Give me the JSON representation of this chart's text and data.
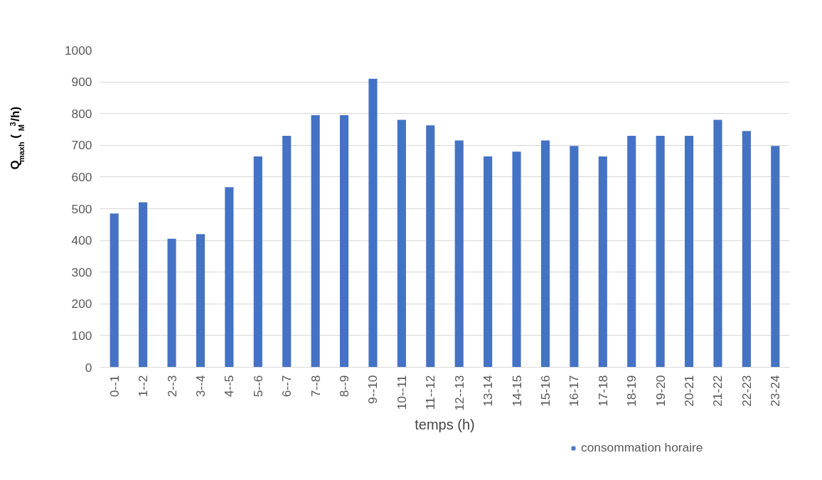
{
  "chart_data": {
    "type": "bar",
    "xlabel": "temps (h)",
    "ylabel": "Q$_{maxh}$ ($_{M}$$^{3}$/h)",
    "categories": [
      "0--1",
      "1--2",
      "2--3",
      "3--4",
      "4--5",
      "5--6",
      "6--7",
      "7--8",
      "8--9",
      "9--10",
      "10--11",
      "11--12",
      "12--13",
      "13-14",
      "14-15",
      "15-16",
      "16-17",
      "17-18",
      "18-19",
      "19-20",
      "20-21",
      "21-22",
      "22-23",
      "23-24"
    ],
    "series": [
      {
        "name": "consommation horaire",
        "color": "#4472c4",
        "values": [
          485,
          520,
          405,
          420,
          568,
          665,
          730,
          795,
          795,
          910,
          780,
          763,
          715,
          665,
          680,
          715,
          698,
          665,
          730,
          730,
          730,
          780,
          745,
          698
        ]
      }
    ],
    "ylim": [
      0,
      1000
    ],
    "yticks": [
      0,
      100,
      200,
      300,
      400,
      500,
      600,
      700,
      800,
      900,
      1000
    ],
    "grid": "y",
    "legend": "bottom"
  }
}
